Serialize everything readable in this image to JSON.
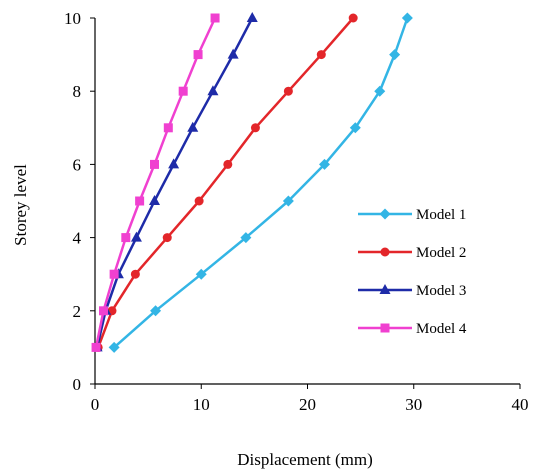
{
  "chart_data": {
    "type": "line",
    "xlabel": "Displacement (mm)",
    "ylabel": "Storey level",
    "xlim": [
      0,
      40
    ],
    "ylim": [
      0,
      10
    ],
    "xticks": [
      0,
      10,
      20,
      30,
      40
    ],
    "yticks": [
      0,
      2,
      4,
      6,
      8,
      10
    ],
    "grid": false,
    "legend_position": "right",
    "series": [
      {
        "name": "Model 1",
        "color": "#33B5E5",
        "marker": "diamond",
        "points": [
          [
            1.8,
            1
          ],
          [
            5.7,
            2
          ],
          [
            10,
            3
          ],
          [
            14.2,
            4
          ],
          [
            18.2,
            5
          ],
          [
            21.6,
            6
          ],
          [
            24.5,
            7
          ],
          [
            26.8,
            8
          ],
          [
            28.2,
            9
          ],
          [
            29.4,
            10
          ]
        ]
      },
      {
        "name": "Model 2",
        "color": "#E3262A",
        "marker": "circle",
        "points": [
          [
            0.3,
            1
          ],
          [
            1.6,
            2
          ],
          [
            3.8,
            3
          ],
          [
            6.8,
            4
          ],
          [
            9.8,
            5
          ],
          [
            12.5,
            6
          ],
          [
            15.1,
            7
          ],
          [
            18.2,
            8
          ],
          [
            21.3,
            9
          ],
          [
            24.3,
            10
          ]
        ]
      },
      {
        "name": "Model 3",
        "color": "#1E2BA8",
        "marker": "triangle",
        "points": [
          [
            0.2,
            1
          ],
          [
            1.0,
            2
          ],
          [
            2.2,
            3
          ],
          [
            3.9,
            4
          ],
          [
            5.6,
            5
          ],
          [
            7.4,
            6
          ],
          [
            9.2,
            7
          ],
          [
            11.1,
            8
          ],
          [
            13.0,
            9
          ],
          [
            14.8,
            10
          ]
        ]
      },
      {
        "name": "Model 4",
        "color": "#F040D0",
        "marker": "square",
        "points": [
          [
            0.1,
            1
          ],
          [
            0.8,
            2
          ],
          [
            1.8,
            3
          ],
          [
            2.9,
            4
          ],
          [
            4.2,
            5
          ],
          [
            5.6,
            6
          ],
          [
            6.9,
            7
          ],
          [
            8.3,
            8
          ],
          [
            9.7,
            9
          ],
          [
            11.3,
            10
          ]
        ]
      }
    ]
  }
}
